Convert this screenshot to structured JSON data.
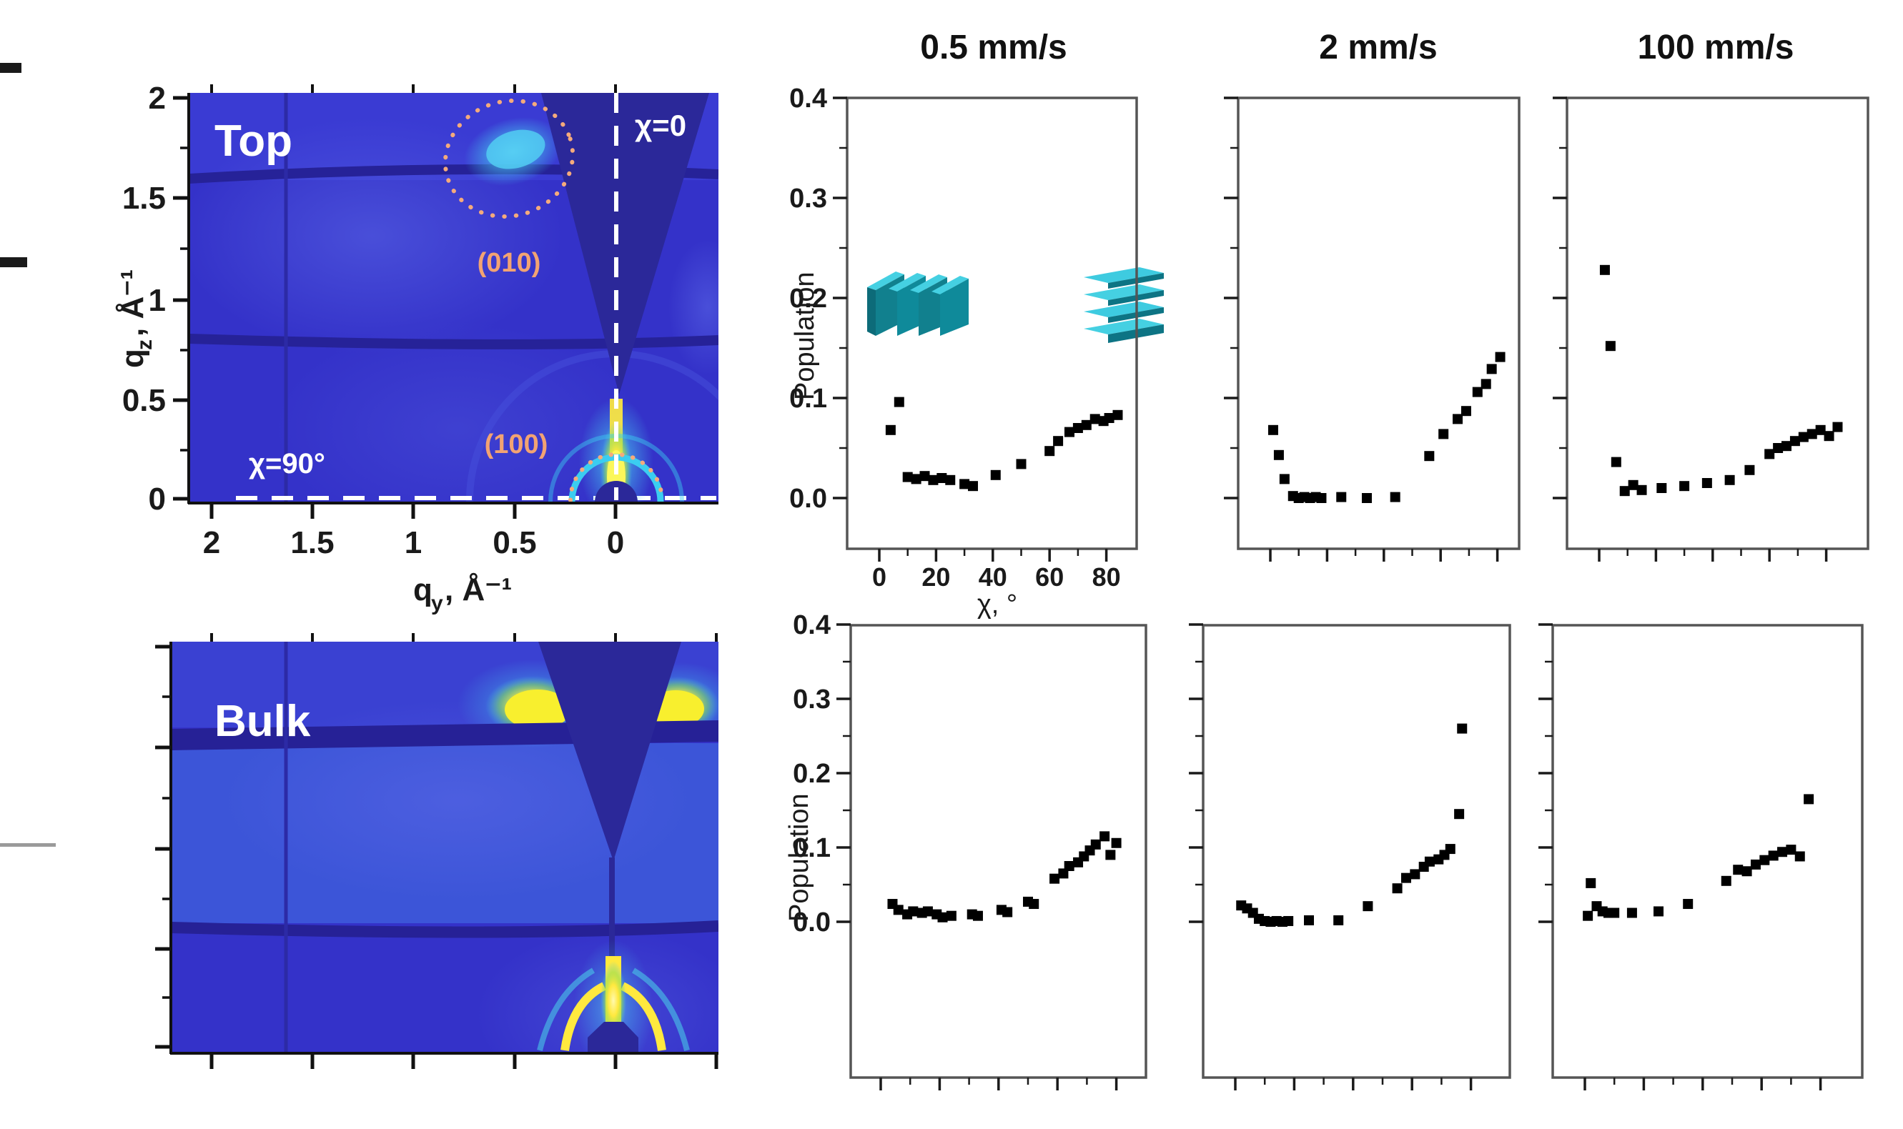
{
  "figure": {
    "description": "GIWAXS orientation analysis figure: two 2D scattering maps (Top surface and Bulk) and six population-vs-chi scatter plots for three coating speeds"
  },
  "giwaxs": {
    "top_panel": {
      "label": "Top",
      "chi0_label": "χ=0",
      "chi90_label": "χ=90°",
      "peak_010_label": "(010)",
      "peak_100_label": "(100)",
      "y_axis": {
        "symbol": "q",
        "subscript": "z",
        "unit": ", Å⁻¹",
        "tick_labels": [
          "2",
          "1.5",
          "1",
          "0.5",
          "0"
        ]
      },
      "x_axis": {
        "symbol": "q",
        "subscript": "y",
        "unit": ", Å⁻¹",
        "tick_labels": [
          "2",
          "1.5",
          "1",
          "0.5",
          "0"
        ]
      }
    },
    "bulk_panel": {
      "label": "Bulk"
    }
  },
  "scatter_grid": {
    "column_headers": [
      "0.5 mm/s",
      "2 mm/s",
      "100 mm/s"
    ],
    "y_axis_label": "Population",
    "x_axis_label": "χ, °",
    "x_tick_labels": [
      "0",
      "20",
      "40",
      "60",
      "80"
    ],
    "y_tick_labels": [
      "0.4",
      "0.3",
      "0.2",
      "0.1",
      "0.0"
    ]
  },
  "colors": {
    "marker": "#000000",
    "frame": "#555555",
    "map_base": "#3432c9",
    "map_dark": "#2b2899",
    "map_yellow": "#ffe93e",
    "map_cyan": "#46c8f0",
    "annotation_orange": "#f2a373",
    "icon_teal_dark": "#11808e",
    "icon_teal_light": "#45d0e2"
  },
  "chart_data": [
    {
      "id": "top_0p5mms",
      "type": "scatter",
      "title": "0.5 mm/s",
      "sample": "Top",
      "xlabel": "χ, °",
      "ylabel": "Population",
      "xlim": [
        -10,
        85
      ],
      "ylim": [
        -0.05,
        0.4
      ],
      "grid": false,
      "marker": "square",
      "x": [
        4,
        7,
        10,
        13,
        16,
        19,
        22,
        25,
        30,
        33,
        41,
        50,
        60,
        63,
        67,
        70,
        73,
        76,
        79,
        81,
        84
      ],
      "y": [
        0.068,
        0.096,
        0.021,
        0.019,
        0.022,
        0.018,
        0.02,
        0.018,
        0.014,
        0.012,
        0.023,
        0.034,
        0.047,
        0.057,
        0.066,
        0.07,
        0.073,
        0.079,
        0.077,
        0.08,
        0.083
      ]
    },
    {
      "id": "top_2mms",
      "type": "scatter",
      "title": "2 mm/s",
      "sample": "Top",
      "xlabel": "χ, °",
      "ylabel": "Population",
      "xlim": [
        -10,
        85
      ],
      "ylim": [
        -0.05,
        0.4
      ],
      "grid": false,
      "marker": "square",
      "x": [
        1,
        3,
        5,
        8,
        10,
        12,
        14,
        16,
        18,
        25,
        34,
        44,
        56,
        61,
        66,
        69,
        73,
        76,
        78,
        81
      ],
      "y": [
        0.068,
        0.043,
        0.019,
        0.002,
        0.0,
        0.001,
        0.0,
        0.001,
        0.0,
        0.001,
        0.0,
        0.001,
        0.042,
        0.064,
        0.079,
        0.087,
        0.106,
        0.114,
        0.129,
        0.141
      ]
    },
    {
      "id": "top_100mms",
      "type": "scatter",
      "title": "100 mm/s",
      "sample": "Top",
      "xlabel": "χ, °",
      "ylabel": "Population",
      "xlim": [
        -10,
        85
      ],
      "ylim": [
        -0.05,
        0.4
      ],
      "grid": false,
      "marker": "square",
      "x": [
        2,
        4,
        6,
        9,
        12,
        15,
        22,
        30,
        38,
        46,
        53,
        60,
        63,
        66,
        69,
        72,
        75,
        78,
        81,
        84
      ],
      "y": [
        0.228,
        0.152,
        0.036,
        0.007,
        0.013,
        0.008,
        0.01,
        0.012,
        0.015,
        0.018,
        0.028,
        0.044,
        0.05,
        0.052,
        0.057,
        0.061,
        0.064,
        0.068,
        0.062,
        0.071
      ]
    },
    {
      "id": "bulk_0p5mms",
      "type": "scatter",
      "title": "0.5 mm/s",
      "sample": "Bulk",
      "xlabel": "χ, °",
      "ylabel": "Population",
      "xlim": [
        -10,
        90
      ],
      "ylim": [
        -0.21,
        0.4
      ],
      "grid": false,
      "marker": "square",
      "x": [
        4,
        6,
        9,
        11,
        14,
        16,
        19,
        21,
        24,
        31,
        33,
        41,
        43,
        50,
        52,
        59,
        62,
        64,
        67,
        69,
        71,
        73,
        76,
        78,
        80
      ],
      "y": [
        0.024,
        0.016,
        0.01,
        0.014,
        0.012,
        0.014,
        0.01,
        0.006,
        0.008,
        0.01,
        0.008,
        0.016,
        0.013,
        0.027,
        0.024,
        0.058,
        0.065,
        0.075,
        0.08,
        0.088,
        0.096,
        0.104,
        0.115,
        0.09,
        0.106
      ]
    },
    {
      "id": "bulk_2mms",
      "type": "scatter",
      "title": "2 mm/s",
      "sample": "Bulk",
      "xlabel": "χ, °",
      "ylabel": "Population",
      "xlim": [
        -10,
        90
      ],
      "ylim": [
        -0.21,
        0.4
      ],
      "grid": false,
      "marker": "square",
      "x": [
        2,
        4,
        6,
        8,
        10,
        12,
        14,
        16,
        18,
        25,
        35,
        45,
        55,
        58,
        61,
        64,
        66,
        69,
        71,
        73,
        76,
        77
      ],
      "y": [
        0.022,
        0.018,
        0.012,
        0.004,
        0.001,
        0.0,
        0.001,
        0.0,
        0.001,
        0.002,
        0.002,
        0.021,
        0.045,
        0.059,
        0.064,
        0.074,
        0.081,
        0.084,
        0.09,
        0.098,
        0.145,
        0.26
      ]
    },
    {
      "id": "bulk_100mms",
      "type": "scatter",
      "title": "100 mm/s",
      "sample": "Bulk",
      "xlabel": "χ, °",
      "ylabel": "Population",
      "xlim": [
        -10,
        90
      ],
      "ylim": [
        -0.21,
        0.4
      ],
      "grid": false,
      "marker": "square",
      "x": [
        1,
        2,
        4,
        6,
        8,
        10,
        16,
        25,
        35,
        48,
        52,
        55,
        58,
        61,
        64,
        67,
        70,
        73,
        76
      ],
      "y": [
        0.008,
        0.052,
        0.021,
        0.014,
        0.012,
        0.012,
        0.012,
        0.014,
        0.024,
        0.055,
        0.07,
        0.068,
        0.077,
        0.083,
        0.089,
        0.094,
        0.097,
        0.088,
        0.165
      ]
    },
    {
      "id": "giwaxs_top",
      "type": "heatmap",
      "title": "Top",
      "xlabel": "qy, Å⁻¹",
      "ylabel": "qz, Å⁻¹",
      "xlim": [
        2.1,
        -0.5
      ],
      "ylim": [
        0,
        2.05
      ],
      "colormap": "parula-like blue→cyan→yellow",
      "features": [
        "vertical white dashed line at qy=0 labeled χ=0",
        "horizontal white dashed line at qz≈0 labeled χ=90°",
        "orange dotted region around (010) arc near qy≈0.5, qz≈1.6-1.9 with cyan intensity blob",
        "orange dotted arc around (100) peak near qy=0, qz≈0-0.4",
        "intense yellow (100) streak along qy=0 below qz≈0.5 with cyan arc and beamstop shadow",
        "dark detector gap bands at qz≈1.55 and qz≈0.8 and dark missing wedge near qy≈0"
      ]
    },
    {
      "id": "giwaxs_bulk",
      "type": "heatmap",
      "title": "Bulk",
      "xlabel": "qy, Å⁻¹",
      "ylabel": "qz, Å⁻¹",
      "xlim": [
        2.1,
        -0.5
      ],
      "ylim": [
        0,
        2.05
      ],
      "colormap": "parula-like blue→cyan→yellow",
      "features": [
        "two intense yellow (010) lobes at qz≈1.65 flanking the missing-data wedge",
        "dark wedge from top center converging at qy=0, qz≈0.95",
        "bright yellow (100) streak and forked arcs at qy=0 near qz≈0-0.45 with beamstop shadow",
        "dark detector gap bands at qz≈1.55 and qz≈0.6, brighter cyan-blue mid band"
      ]
    }
  ]
}
